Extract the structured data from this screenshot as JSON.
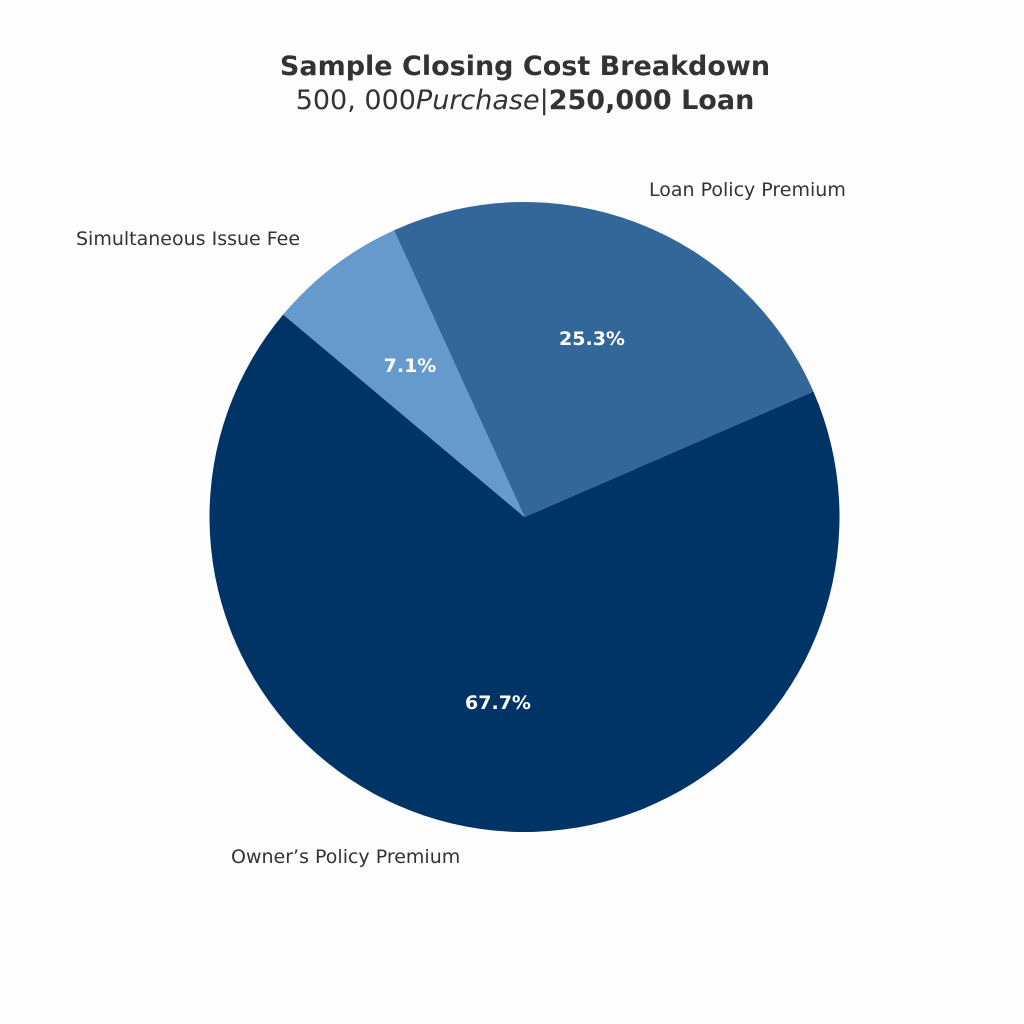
{
  "chart_data": {
    "type": "pie",
    "title": "Sample Closing Cost Breakdown",
    "subtitle": {
      "part1": "500, 000",
      "part2": "Purchase",
      "part3": "|",
      "part4": "250,000 Loan"
    },
    "start_angle": 140,
    "counterclock": true,
    "categories": [
      "Owner’s Policy Premium",
      "Loan Policy Premium",
      "Simultaneous Issue Fee"
    ],
    "values": [
      67.7,
      25.3,
      7.1
    ],
    "percent_labels": [
      "67.7%",
      "25.3%",
      "7.1%"
    ],
    "colors": [
      "#003366",
      "#336699",
      "#6699cc"
    ],
    "legend": null
  },
  "background": "#fdfdfd"
}
